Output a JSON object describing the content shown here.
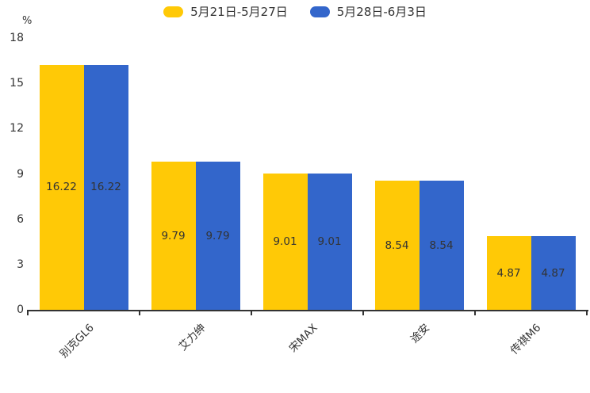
{
  "chart_data": {
    "type": "bar",
    "title": "",
    "xlabel": "",
    "ylabel": "%",
    "categories": [
      "别克GL6",
      "艾力绅",
      "宋MAX",
      "途安",
      "传祺M6"
    ],
    "series": [
      {
        "name": "5月21日-5月27日",
        "color": "#FFC906",
        "values": [
          16.22,
          9.79,
          9.01,
          8.54,
          4.87
        ]
      },
      {
        "name": "5月28日-6月3日",
        "color": "#3366CB",
        "values": [
          16.22,
          9.79,
          9.01,
          8.54,
          4.87
        ]
      }
    ],
    "ylim": [
      0,
      18
    ],
    "yticks": [
      0,
      3,
      6,
      9,
      12,
      15,
      18
    ],
    "legend_position": "top",
    "grid": false,
    "data_labels": true,
    "value_label_color": "#333333",
    "axis_color": "#333333",
    "background": "#ffffff"
  }
}
